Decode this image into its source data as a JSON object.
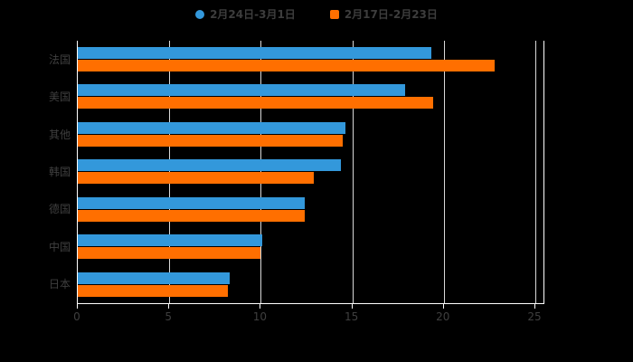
{
  "colors": {
    "background": "#000000",
    "axis_line": "#ffffff",
    "gridline": "#ffffff",
    "text": "#3f3f3f"
  },
  "chart_data": {
    "type": "bar",
    "orientation": "horizontal",
    "title": "",
    "xlabel": "",
    "ylabel": "",
    "categories": [
      "法国",
      "美国",
      "其他",
      "韩国",
      "德国",
      "中国",
      "日本"
    ],
    "series": [
      {
        "name": "2月24日-3月1日",
        "color": "#3398DB",
        "marker": "circle",
        "values": [
          19.3,
          17.9,
          14.6,
          14.4,
          12.4,
          10.1,
          8.3
        ]
      },
      {
        "name": "2月17日-2月23日",
        "color": "#FF6F00",
        "marker": "square",
        "values": [
          22.8,
          19.4,
          14.5,
          12.9,
          12.4,
          10.0,
          8.2
        ]
      }
    ],
    "xlim": [
      0,
      25
    ],
    "xticks": [
      0,
      5,
      10,
      15,
      20,
      25
    ],
    "grid": true,
    "legend_position": "top"
  }
}
